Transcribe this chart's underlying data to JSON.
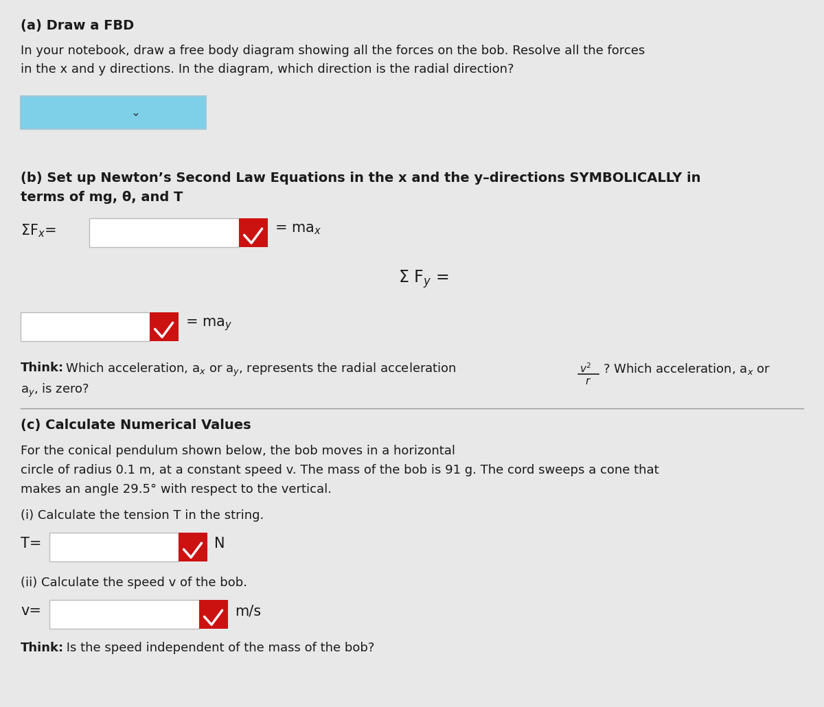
{
  "bg_color": "#e8e8e8",
  "text_color": "#1a1a1a",
  "title_a": "(a) Draw a FBD",
  "para_a_1": "In your notebook, draw a free body diagram showing all the forces on the bob. Resolve all the forces",
  "para_a_2": "in the x and y directions. In the diagram, which direction is the radial direction?",
  "title_b_1": "(b) Set up Newton’s Second Law Equations in the x and the y–directions SYMBOLICALLY in",
  "title_b_2": "terms of mg, θ, and T",
  "title_c": "(c) Calculate Numerical Values",
  "para_c_1": "For the conical pendulum shown below, the bob moves in a horizontal",
  "para_c_2": "circle of radius 0.1 m, at a constant speed v. The mass of the bob is 91 g. The cord sweeps a cone that",
  "para_c_3": "makes an angle 29.5° with respect to the vertical.",
  "sub_i": "(i) Calculate the tension T in the string.",
  "sub_ii": "(ii) Calculate the speed v of the bob.",
  "think_c": " Is the speed independent of the mass of the bob?",
  "box_fill": "#7ecfe8",
  "input_fill": "#ffffff",
  "check_fill": "#cc1111",
  "check_color": "#ffffff",
  "font_size_title": 14,
  "font_size_body": 13,
  "font_size_eq": 15
}
